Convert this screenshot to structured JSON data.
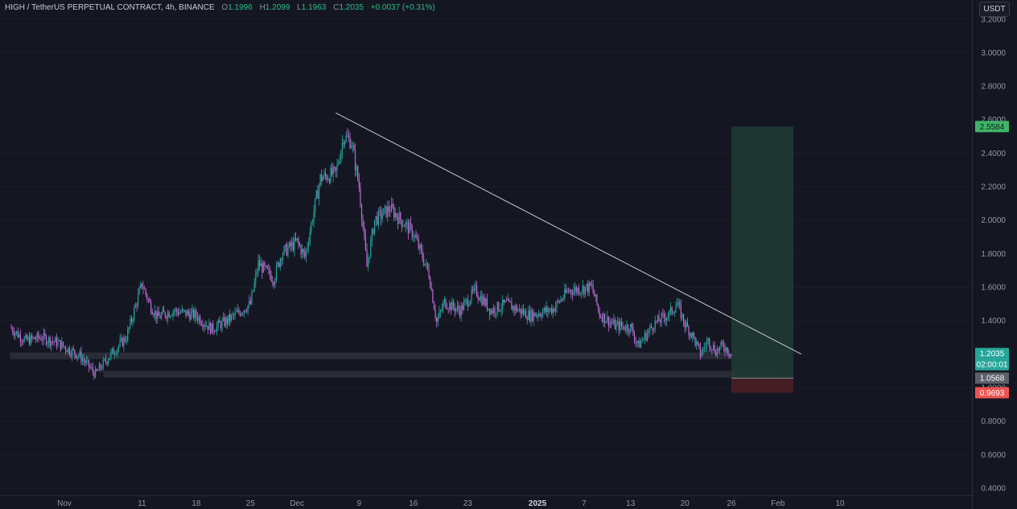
{
  "header": {
    "symbol": "HIGH / TetherUS PERPETUAL CONTRACT, 4h, BINANCE",
    "open_label": "O",
    "open": "1.1996",
    "high_label": "H",
    "high": "1.2099",
    "low_label": "L",
    "low": "1.1963",
    "close_label": "C",
    "close": "1.2035",
    "change": "+0.0037 (+0.31%)"
  },
  "currency_button": "USDT",
  "price_tags": {
    "last_price": "1.2035",
    "countdown": "02:00:01",
    "take_profit": "2.5584",
    "entry": "1.0568",
    "stop_loss": "0.9693"
  },
  "colors": {
    "background": "#141722",
    "candle_up": "#26a69a",
    "candle_down": "#c06bd6",
    "trendline": "#c9cbd3",
    "profit_zone": "#1f3a33",
    "loss_zone": "#4a1f24",
    "support_band": "#3a3d48",
    "tag_green": "#26a69a",
    "tag_red": "#ef5350",
    "tag_gray": "#5d606b",
    "tag_tp": "#3fb56a"
  },
  "chart_data": {
    "type": "candlestick",
    "symbol": "HIGH/USDT",
    "interval": "4h",
    "ylim": [
      0.4,
      3.2
    ],
    "y_ticks": [
      "0.4000",
      "0.6000",
      "0.8000",
      "1.0000",
      "1.2000",
      "1.4000",
      "1.6000",
      "1.8000",
      "2.0000",
      "2.2000",
      "2.4000",
      "2.6000",
      "2.8000",
      "3.0000",
      "3.2000"
    ],
    "x_ticks": [
      "Nov",
      "11",
      "18",
      "25",
      "Dec",
      "9",
      "16",
      "23",
      "2025",
      "7",
      "13",
      "20",
      "26",
      "Feb",
      "10"
    ],
    "x_tick_days": [
      -2,
      8,
      15,
      22,
      28,
      36,
      43,
      50,
      59,
      65,
      71,
      78,
      84,
      90,
      98
    ],
    "series": [
      {
        "day": -9,
        "close": 1.36
      },
      {
        "day": -7,
        "close": 1.28
      },
      {
        "day": -5,
        "close": 1.3
      },
      {
        "day": -3,
        "close": 1.27
      },
      {
        "day": 0,
        "close": 1.19
      },
      {
        "day": 2,
        "close": 1.08
      },
      {
        "day": 4,
        "close": 1.2
      },
      {
        "day": 6,
        "close": 1.3
      },
      {
        "day": 8,
        "close": 1.62
      },
      {
        "day": 9,
        "close": 1.5
      },
      {
        "day": 10,
        "close": 1.42
      },
      {
        "day": 12,
        "close": 1.46
      },
      {
        "day": 15,
        "close": 1.43
      },
      {
        "day": 17,
        "close": 1.35
      },
      {
        "day": 19,
        "close": 1.4
      },
      {
        "day": 22,
        "close": 1.5
      },
      {
        "day": 23,
        "close": 1.74
      },
      {
        "day": 25,
        "close": 1.65
      },
      {
        "day": 26,
        "close": 1.8
      },
      {
        "day": 28,
        "close": 1.87
      },
      {
        "day": 29,
        "close": 1.78
      },
      {
        "day": 31,
        "close": 2.25
      },
      {
        "day": 33,
        "close": 2.28
      },
      {
        "day": 34,
        "close": 2.5
      },
      {
        "day": 35,
        "close": 2.47
      },
      {
        "day": 36,
        "close": 2.2
      },
      {
        "day": 37,
        "close": 1.72
      },
      {
        "day": 38,
        "close": 2.0
      },
      {
        "day": 40,
        "close": 2.07
      },
      {
        "day": 43,
        "close": 1.92
      },
      {
        "day": 45,
        "close": 1.68
      },
      {
        "day": 46,
        "close": 1.39
      },
      {
        "day": 47,
        "close": 1.51
      },
      {
        "day": 49,
        "close": 1.46
      },
      {
        "day": 51,
        "close": 1.58
      },
      {
        "day": 53,
        "close": 1.46
      },
      {
        "day": 55,
        "close": 1.5
      },
      {
        "day": 58,
        "close": 1.43
      },
      {
        "day": 61,
        "close": 1.47
      },
      {
        "day": 63,
        "close": 1.58
      },
      {
        "day": 66,
        "close": 1.6
      },
      {
        "day": 67,
        "close": 1.44
      },
      {
        "day": 69,
        "close": 1.37
      },
      {
        "day": 71,
        "close": 1.36
      },
      {
        "day": 72,
        "close": 1.25
      },
      {
        "day": 74,
        "close": 1.38
      },
      {
        "day": 76,
        "close": 1.44
      },
      {
        "day": 77,
        "close": 1.5
      },
      {
        "day": 78,
        "close": 1.38
      },
      {
        "day": 79,
        "close": 1.31
      },
      {
        "day": 80,
        "close": 1.2
      },
      {
        "day": 81,
        "close": 1.28
      },
      {
        "day": 82,
        "close": 1.22
      },
      {
        "day": 83,
        "close": 1.25
      },
      {
        "day": 84,
        "close": 1.2035
      }
    ],
    "trendline": {
      "start": {
        "day": 33,
        "price": 2.64
      },
      "end": {
        "day": 93,
        "price": 1.2
      }
    },
    "support_zones": [
      {
        "from_day": -9,
        "to_day": 87,
        "low": 1.17,
        "high": 1.21
      },
      {
        "from_day": 3,
        "to_day": 90,
        "low": 1.06,
        "high": 1.1
      }
    ],
    "position": {
      "type": "long",
      "from_day": 84,
      "to_day": 92,
      "entry": 1.0568,
      "take_profit": 2.5584,
      "stop_loss": 0.9693
    },
    "last_price": 1.2035
  }
}
